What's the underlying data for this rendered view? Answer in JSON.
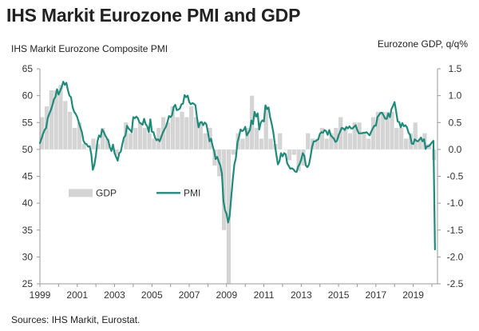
{
  "chart_data": {
    "type": "bar+line",
    "title": "IHS Markit Eurozone PMI and GDP",
    "left_axis_label": "IHS Markit Eurozone Composite PMI",
    "right_axis_label": "Eurozone GDP, q/q%",
    "source": "Sources: IHS Markit, Eurostat.",
    "left_ylim": [
      25,
      65
    ],
    "right_ylim": [
      -2.5,
      1.5
    ],
    "left_ticks": [
      25,
      30,
      35,
      40,
      45,
      50,
      55,
      60,
      65
    ],
    "right_ticks": [
      "-2.5",
      "-2.0",
      "-1.5",
      "-1.0",
      "-0.5",
      "0.0",
      "0.5",
      "1.0",
      "1.5"
    ],
    "right_tick_values": [
      -2.5,
      -2.0,
      -1.5,
      -1.0,
      -0.5,
      0.0,
      0.5,
      1.0,
      1.5
    ],
    "xlim": [
      1999,
      2020.3
    ],
    "x_ticks": [
      "1999",
      "2001",
      "2003",
      "2005",
      "2007",
      "2009",
      "2011",
      "2013",
      "2015",
      "2017",
      "2019"
    ],
    "x_tick_values": [
      1999,
      2001,
      2003,
      2005,
      2007,
      2009,
      2011,
      2013,
      2015,
      2017,
      2019
    ],
    "legend": {
      "bar": "GDP",
      "line": "PMI"
    },
    "colors": {
      "bar": "#d4d4d4",
      "line": "#1f8a7a",
      "axis": "#999999"
    },
    "gdp_series": {
      "name": "GDP",
      "start_year": 1999.0,
      "step": 0.25,
      "values": [
        0.6,
        0.8,
        1.1,
        1.1,
        1.2,
        0.9,
        0.7,
        0.4,
        0.5,
        0.1,
        0.0,
        0.2,
        0.1,
        0.4,
        0.2,
        0.0,
        -0.1,
        0.0,
        0.5,
        0.3,
        0.4,
        0.5,
        0.4,
        0.3,
        0.2,
        0.4,
        0.6,
        0.5,
        0.8,
        0.6,
        0.7,
        0.6,
        0.8,
        0.6,
        0.5,
        0.3,
        0.4,
        -0.3,
        -0.5,
        -1.5,
        -2.5,
        -0.1,
        0.3,
        0.2,
        0.4,
        1.0,
        0.4,
        0.2,
        0.8,
        0.2,
        0.1,
        0.3,
        0.0,
        -0.2,
        -0.1,
        -0.4,
        -0.3,
        0.3,
        0.2,
        0.2,
        0.4,
        0.2,
        0.3,
        0.4,
        0.6,
        0.4,
        0.3,
        0.5,
        0.5,
        0.3,
        0.2,
        0.6,
        0.7,
        0.7,
        0.7,
        0.7,
        0.4,
        0.4,
        0.2,
        0.3,
        0.5,
        0.2,
        0.3,
        0.1,
        -0.2
      ]
    },
    "pmi_series": {
      "name": "PMI",
      "start_year": 1999.0,
      "step": 0.0833333,
      "values": [
        51.2,
        52.0,
        52.9,
        53.6,
        54.0,
        55.8,
        56.6,
        57.3,
        58.2,
        59.3,
        59.8,
        61.2,
        60.2,
        60.9,
        61.6,
        62.6,
        62.0,
        62.4,
        61.0,
        60.0,
        59.7,
        57.9,
        57.0,
        56.6,
        56.0,
        55.0,
        54.1,
        53.2,
        51.6,
        51.1,
        51.0,
        50.5,
        50.6,
        49.2,
        46.2,
        47.1,
        48.9,
        51.5,
        52.6,
        52.3,
        53.7,
        53.3,
        52.6,
        52.1,
        51.6,
        50.4,
        49.7,
        50.9,
        49.3,
        48.6,
        47.9,
        49.3,
        49.6,
        51.0,
        52.2,
        52.6,
        54.4,
        53.9,
        53.6,
        53.2,
        56.0,
        55.8,
        56.1,
        55.8,
        55.0,
        54.8,
        54.6,
        55.7,
        54.7,
        54.3,
        53.2,
        55.6,
        53.3,
        53.2,
        52.2,
        51.7,
        51.9,
        51.5,
        52.3,
        53.1,
        53.7,
        54.2,
        55.1,
        56.2,
        56.0,
        56.4,
        57.9,
        58.3,
        57.3,
        57.4,
        57.6,
        58.4,
        58.5,
        60.1,
        59.7,
        60.0,
        58.8,
        58.4,
        58.6,
        58.5,
        58.2,
        55.9,
        54.1,
        55.0,
        55.1,
        54.5,
        55.0,
        54.7,
        53.2,
        51.5,
        52.0,
        50.7,
        49.7,
        48.2,
        48.6,
        47.7,
        47.0,
        45.5,
        40.4,
        38.7,
        38.0,
        36.4,
        37.7,
        41.1,
        44.4,
        47.2,
        48.4,
        51.3,
        52.4,
        53.7,
        53.4,
        53.6,
        54.2,
        52.6,
        53.1,
        53.6,
        55.4,
        54.7,
        57.0,
        56.1,
        56.7,
        53.7,
        55.0,
        55.4,
        55.2,
        58.2,
        57.5,
        57.8,
        56.0,
        54.8,
        53.3,
        51.1,
        49.0,
        47.2,
        47.8,
        49.3,
        48.7,
        49.3,
        49.1,
        47.4,
        46.9,
        46.4,
        46.5,
        46.3,
        45.9,
        45.8,
        46.8,
        47.3,
        48.1,
        49.3,
        48.8,
        47.0,
        46.7,
        47.2,
        48.7,
        50.5,
        51.5,
        51.5,
        51.7,
        51.9,
        52.9,
        53.2,
        53.1,
        53.6,
        53.4,
        52.7,
        53.6,
        52.6,
        52.3,
        52.0,
        51.4,
        51.6,
        52.6,
        53.3,
        54.0,
        53.9,
        53.6,
        54.2,
        53.9,
        54.3,
        53.9,
        53.9,
        54.2,
        54.5,
        53.6,
        53.0,
        53.0,
        53.0,
        53.1,
        53.1,
        53.2,
        52.9,
        52.6,
        53.3,
        53.9,
        54.4,
        54.4,
        56.0,
        56.4,
        56.8,
        56.8,
        56.3,
        55.7,
        55.7,
        56.7,
        56.0,
        57.5,
        58.1,
        58.8,
        57.1,
        55.2,
        55.1,
        54.1,
        54.9,
        54.3,
        54.5,
        54.1,
        53.1,
        52.7,
        51.1,
        51.0,
        51.9,
        51.6,
        51.5,
        51.8,
        52.2,
        51.5,
        51.9,
        50.1,
        50.6,
        50.6,
        50.9,
        51.3,
        51.6,
        31.4
      ]
    }
  }
}
